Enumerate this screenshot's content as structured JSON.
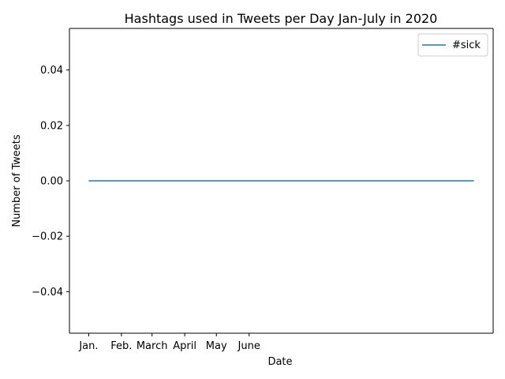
{
  "chart_data": {
    "type": "line",
    "title": "Hashtags used in Tweets per Day Jan-July in 2020",
    "xlabel": "Date",
    "ylabel": "Number of Tweets",
    "x_tick_labels": [
      "Jan.",
      "Feb.",
      "March",
      "April",
      "May",
      "June"
    ],
    "x_tick_days": [
      0,
      31,
      60,
      91,
      121,
      152
    ],
    "x_range": [
      0,
      365
    ],
    "xlim": [
      -18.25,
      383.25
    ],
    "ylim": [
      -0.055,
      0.055
    ],
    "y_ticks": [
      -0.04,
      -0.02,
      0.0,
      0.02,
      0.04
    ],
    "y_tick_labels": [
      "−0.04",
      "−0.02",
      "0.00",
      "0.02",
      "0.04"
    ],
    "series": [
      {
        "name": "#sick",
        "color": "#1f77b4",
        "x": [
          0,
          365
        ],
        "y": [
          0,
          0
        ]
      }
    ],
    "legend_position": "top-right",
    "grid": false
  }
}
